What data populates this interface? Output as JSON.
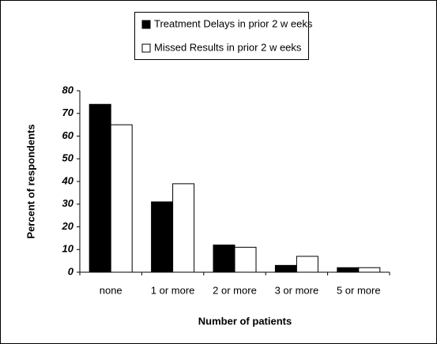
{
  "chart_data": {
    "type": "bar",
    "categories": [
      "none",
      "1 or more",
      "2 or more",
      "3 or more",
      "5 or more"
    ],
    "series": [
      {
        "name": "Treatment Delays in prior 2 w eeks",
        "color": "#000000",
        "values": [
          74,
          31,
          12,
          3,
          2
        ]
      },
      {
        "name": "Missed Results in prior 2 w eeks",
        "color": "#ffffff",
        "values": [
          65,
          39,
          11,
          7,
          2
        ]
      }
    ],
    "ylim": [
      0,
      80
    ],
    "yticks": [
      0,
      10,
      20,
      30,
      40,
      50,
      60,
      70,
      80
    ],
    "y_label": "Percent of respondents",
    "x_label": "Number of patients",
    "grid": false,
    "legend": "top"
  }
}
